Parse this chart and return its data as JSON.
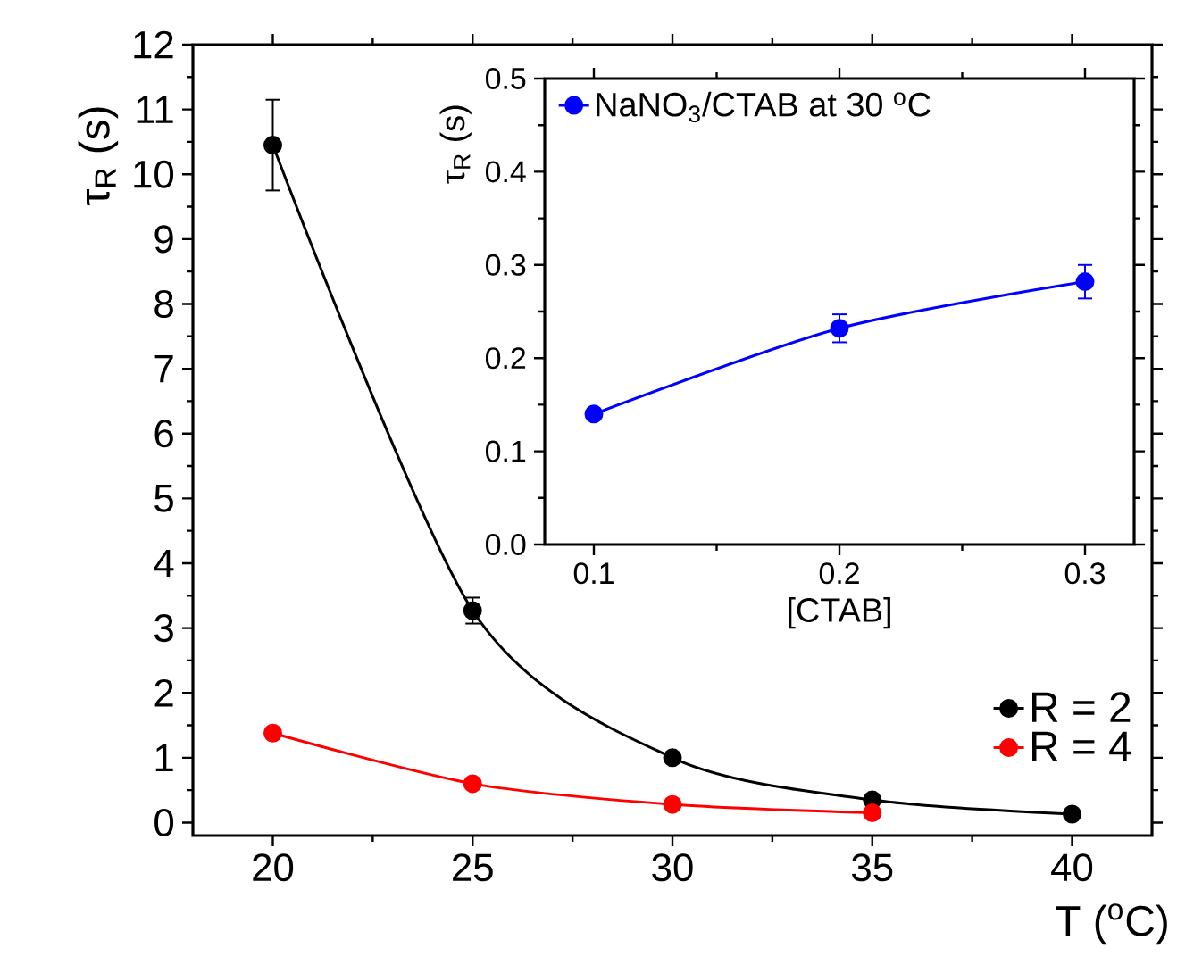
{
  "chart_data": [
    {
      "type": "line",
      "xlabel": "T ($^{o}$C)",
      "ylabel": "τ$_{R}$ (s)",
      "xlim": [
        18,
        42
      ],
      "ylim": [
        -0.2,
        12
      ],
      "xticks": [
        20,
        25,
        30,
        35,
        40
      ],
      "yticks": [
        0,
        1,
        2,
        3,
        4,
        5,
        6,
        7,
        8,
        9,
        10,
        11,
        12
      ],
      "marker": "circle",
      "legend": "bottom right",
      "grid": false,
      "series": [
        {
          "name": "R = 2",
          "color": "#000000",
          "x": [
            20,
            25,
            30,
            35,
            40
          ],
          "values": [
            10.45,
            3.27,
            1.0,
            0.35,
            0.13
          ],
          "errors": [
            0.7,
            0.2,
            null,
            null,
            null
          ]
        },
        {
          "name": "R = 4",
          "color": "#ff0000",
          "x": [
            20,
            25,
            30,
            35
          ],
          "values": [
            1.38,
            0.6,
            0.28,
            0.15
          ]
        }
      ]
    },
    {
      "type": "line",
      "xlabel": "[CTAB]",
      "ylabel": "τ$_{R}$ (s)",
      "xlim": [
        0.08,
        0.32
      ],
      "ylim": [
        0,
        0.5
      ],
      "xticks": [
        0.1,
        0.2,
        0.3
      ],
      "yticks": [
        {
          "value": 0,
          "label": "0.0"
        },
        0.1,
        0.2,
        0.3,
        0.4,
        0.5
      ],
      "marker": "circle",
      "legend": "top left",
      "grid": false,
      "series": [
        {
          "name": "NaNO$_{3}$/CTAB at 30 $^{o}$C",
          "color": "#0000ff",
          "x": [
            0.1,
            0.2,
            0.3
          ],
          "values": [
            0.14,
            0.232,
            0.282
          ],
          "errors": [
            null,
            0.015,
            0.018
          ]
        }
      ]
    }
  ]
}
